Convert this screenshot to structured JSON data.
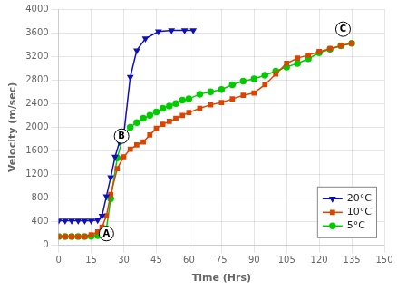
{
  "chart_data": {
    "type": "line",
    "xlabel": "Time (Hrs)",
    "ylabel": "Velocity (m/sec)",
    "xlim": [
      0,
      150
    ],
    "ylim": [
      0,
      4000
    ],
    "xticks": [
      0,
      15,
      30,
      45,
      60,
      75,
      90,
      105,
      120,
      135,
      150
    ],
    "yticks": [
      0,
      400,
      800,
      1200,
      1600,
      2000,
      2400,
      2800,
      3200,
      3600,
      4000
    ],
    "grid": true,
    "legend": "lower right",
    "series": [
      {
        "name": "20°C",
        "color": "#1111bb",
        "marker": "triangle_down",
        "x": [
          0,
          3,
          6,
          9,
          12,
          15,
          18,
          20,
          22,
          24,
          26,
          28,
          30,
          33,
          36,
          40,
          46,
          52,
          58,
          62
        ],
        "values": [
          420,
          420,
          420,
          420,
          420,
          420,
          430,
          500,
          830,
          1150,
          1500,
          1750,
          1870,
          2850,
          3300,
          3500,
          3620,
          3640,
          3640,
          3640
        ]
      },
      {
        "name": "10°C",
        "color": "#dd4400",
        "marker": "square",
        "x": [
          0,
          3,
          6,
          9,
          12,
          15,
          18,
          20,
          22,
          24,
          27,
          30,
          33,
          36,
          39,
          42,
          45,
          48,
          51,
          54,
          57,
          60,
          65,
          70,
          75,
          80,
          85,
          90,
          95,
          100,
          105,
          110,
          115,
          120,
          125,
          130,
          135
        ],
        "values": [
          150,
          150,
          150,
          150,
          150,
          180,
          230,
          310,
          500,
          860,
          1300,
          1500,
          1630,
          1700,
          1750,
          1870,
          1980,
          2050,
          2100,
          2150,
          2200,
          2250,
          2320,
          2380,
          2420,
          2480,
          2540,
          2580,
          2720,
          2900,
          3080,
          3170,
          3220,
          3280,
          3330,
          3380,
          3420
        ]
      },
      {
        "name": "5°C",
        "color": "#00cc00",
        "marker": "circle",
        "x": [
          0,
          3,
          6,
          9,
          12,
          15,
          18,
          20,
          22,
          24,
          27,
          30,
          33,
          36,
          39,
          42,
          45,
          48,
          51,
          54,
          57,
          60,
          65,
          70,
          75,
          80,
          85,
          90,
          95,
          100,
          105,
          110,
          115,
          120,
          125,
          130,
          135
        ],
        "values": [
          150,
          150,
          150,
          150,
          150,
          155,
          165,
          200,
          280,
          790,
          1480,
          1870,
          2000,
          2080,
          2150,
          2200,
          2260,
          2320,
          2360,
          2400,
          2460,
          2480,
          2560,
          2600,
          2640,
          2720,
          2780,
          2820,
          2880,
          2950,
          3020,
          3080,
          3160,
          3260,
          3320,
          3380,
          3420
        ]
      }
    ],
    "annotations": [
      {
        "text": "A",
        "x": 22,
        "y": 200
      },
      {
        "text": "B",
        "x": 29,
        "y": 1850
      },
      {
        "text": "C",
        "x": 131,
        "y": 3660
      }
    ]
  }
}
